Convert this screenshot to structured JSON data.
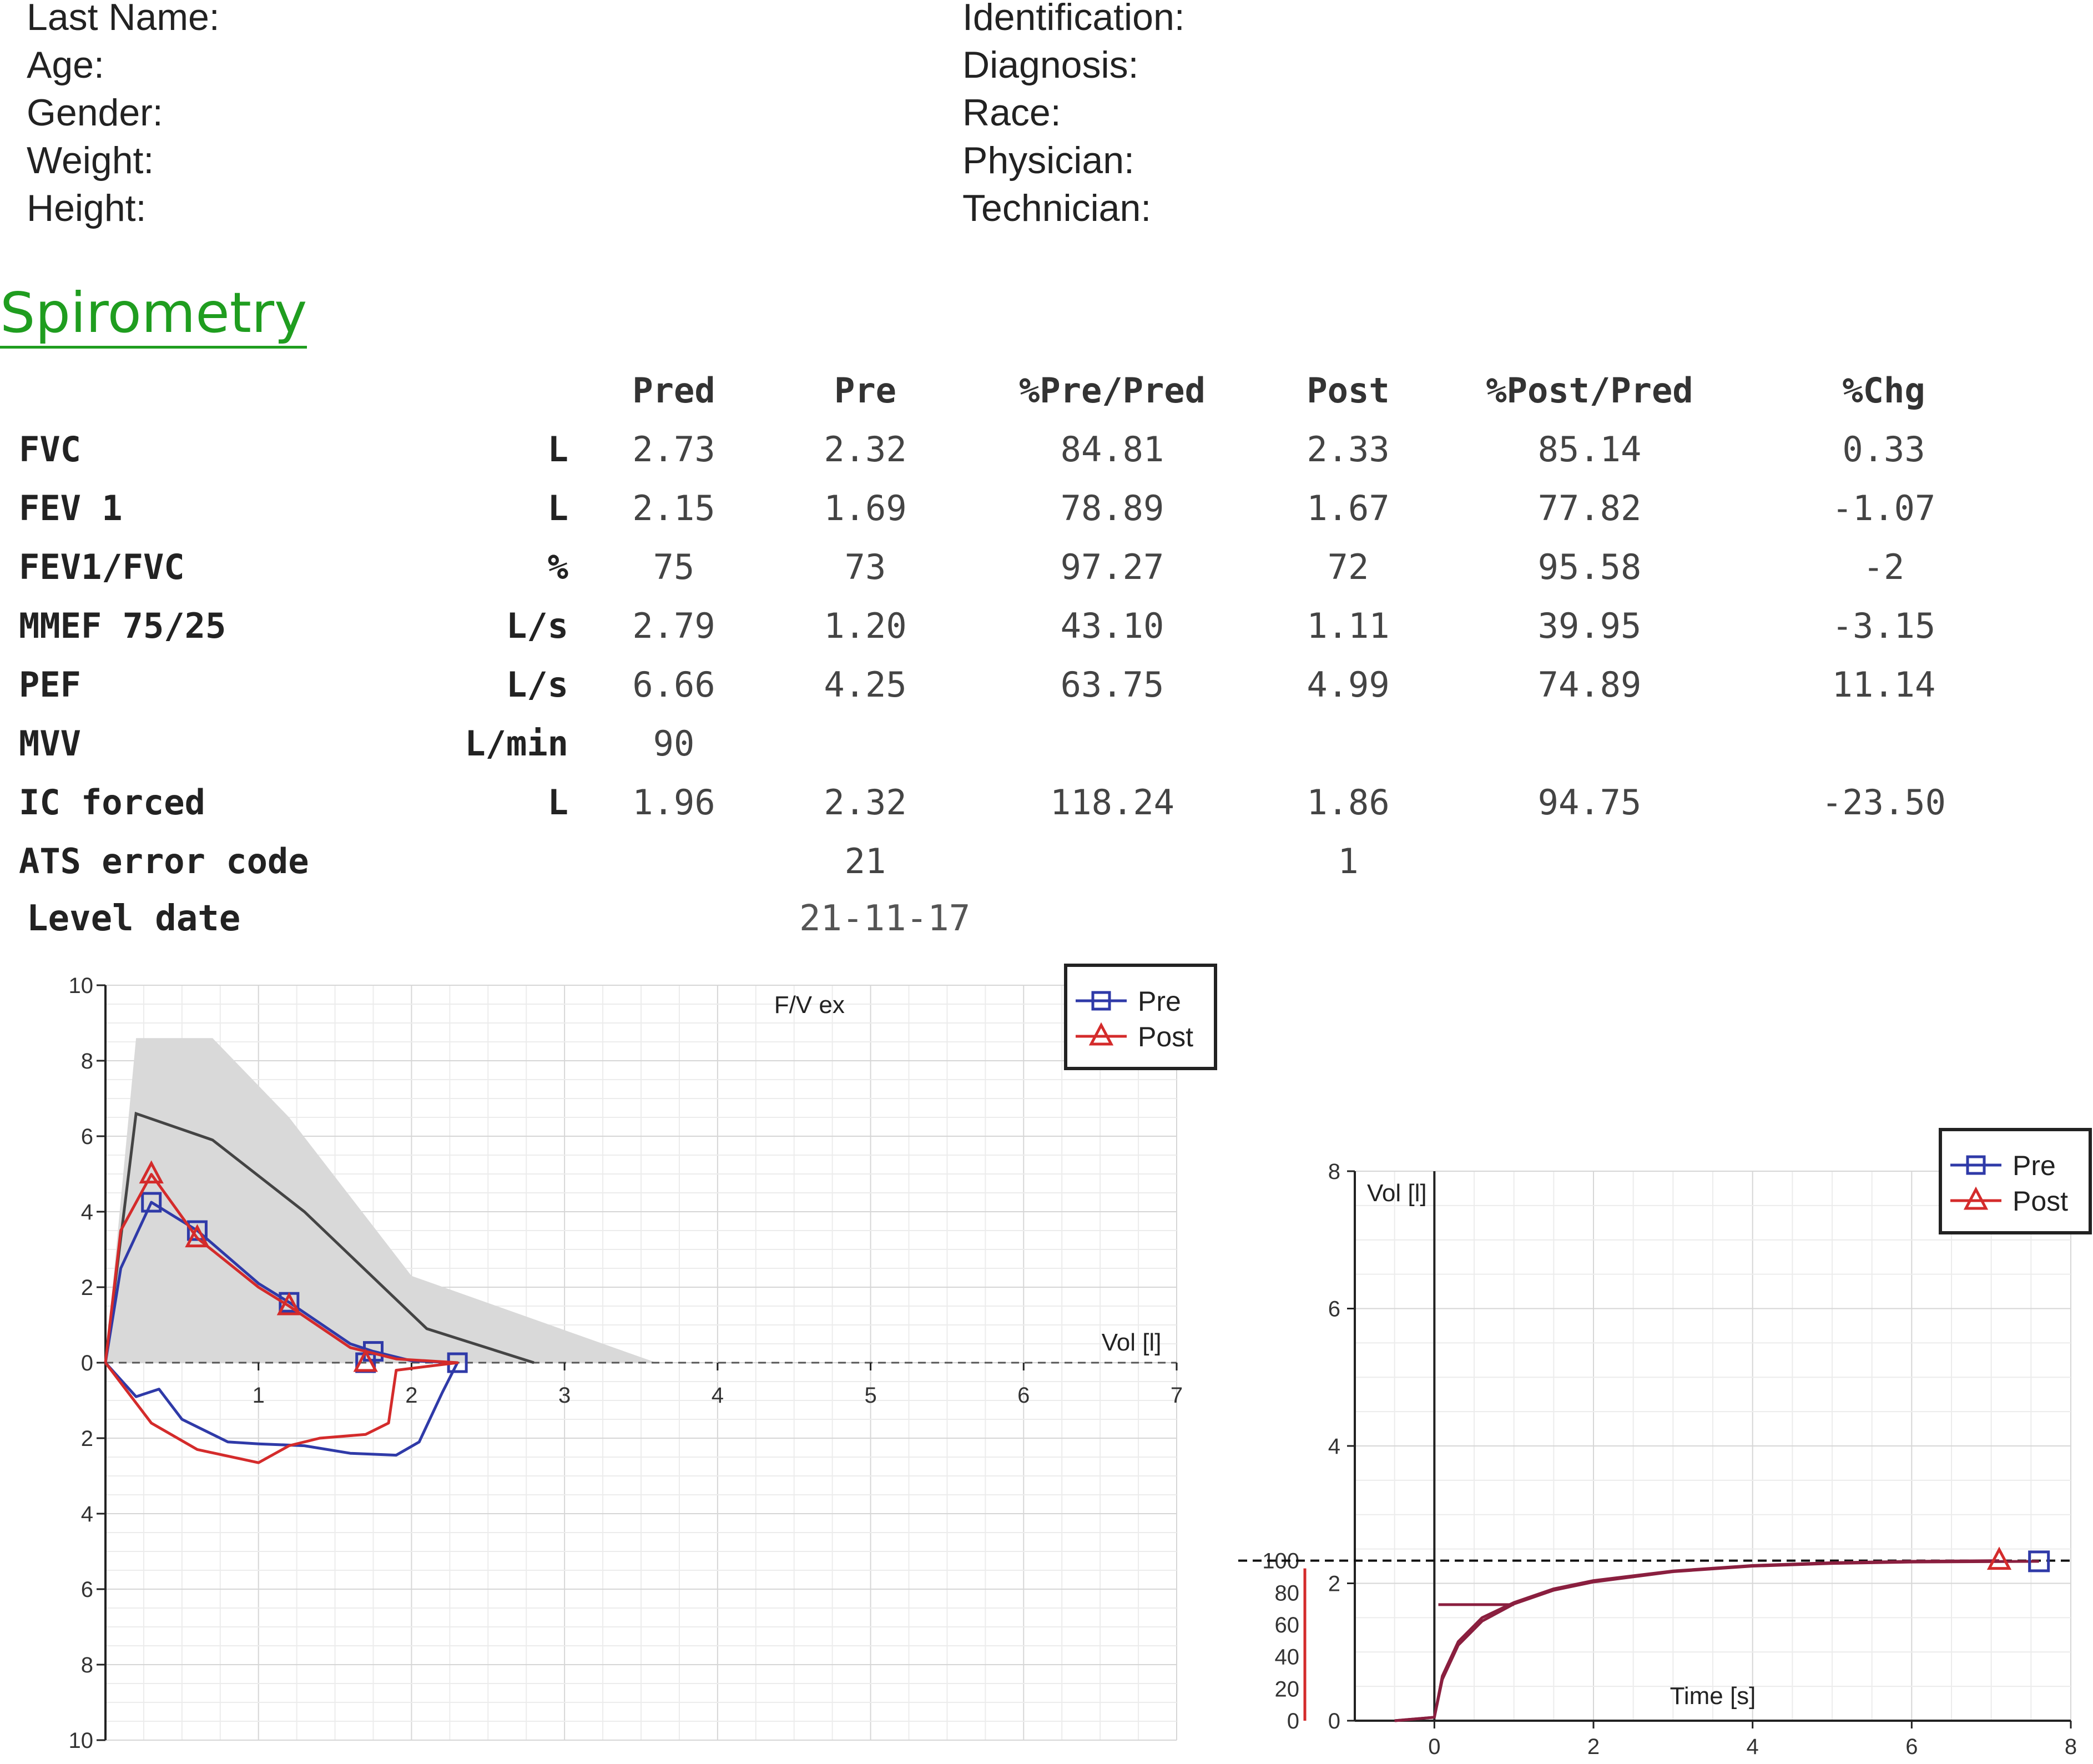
{
  "patient": {
    "left_fields": [
      "Last Name:",
      "Age:",
      "Gender:",
      "Weight:",
      "Height:"
    ],
    "right_fields": [
      "Identification:",
      "Diagnosis:",
      "Race:",
      "Physician:",
      "Technician:"
    ]
  },
  "section_title": "Spirometry",
  "table": {
    "headers": {
      "pred": "Pred",
      "pre": "Pre",
      "pct_pre_pred": "%Pre/Pred",
      "post": "Post",
      "pct_post_pred": "%Post/Pred",
      "chg": "%Chg"
    },
    "rows": [
      {
        "param": "FVC",
        "unit": "L",
        "pred": "2.73",
        "pre": "2.32",
        "pct_pre": "84.81",
        "post": "2.33",
        "pct_post": "85.14",
        "chg": "0.33"
      },
      {
        "param": "FEV 1",
        "unit": "L",
        "pred": "2.15",
        "pre": "1.69",
        "pct_pre": "78.89",
        "post": "1.67",
        "pct_post": "77.82",
        "chg": "-1.07"
      },
      {
        "param": "FEV1/FVC",
        "unit": "%",
        "pred": "75",
        "pre": "73",
        "pct_pre": "97.27",
        "post": "72",
        "pct_post": "95.58",
        "chg": "-2"
      },
      {
        "param": "MMEF 75/25",
        "unit": "L/s",
        "pred": "2.79",
        "pre": "1.20",
        "pct_pre": "43.10",
        "post": "1.11",
        "pct_post": "39.95",
        "chg": "-3.15"
      },
      {
        "param": "PEF",
        "unit": "L/s",
        "pred": "6.66",
        "pre": "4.25",
        "pct_pre": "63.75",
        "post": "4.99",
        "pct_post": "74.89",
        "chg": "11.14"
      },
      {
        "param": "MVV",
        "unit": "L/min",
        "pred": "90",
        "pre": "",
        "pct_pre": "",
        "post": "",
        "pct_post": "",
        "chg": ""
      },
      {
        "param": "IC forced",
        "unit": "L",
        "pred": "1.96",
        "pre": "2.32",
        "pct_pre": "118.24",
        "post": "1.86",
        "pct_post": "94.75",
        "chg": "-23.50"
      },
      {
        "param": "ATS error code",
        "unit": "",
        "pred": "",
        "pre": "21",
        "pct_pre": "",
        "post": "1",
        "pct_post": "",
        "chg": ""
      }
    ]
  },
  "level": {
    "label": "Level date",
    "value": "21-11-17"
  },
  "colors": {
    "pre": "#2f3aa8",
    "post": "#d42b2b",
    "predicted": "#444444",
    "band": "#d9d9d9",
    "title_green": "#1f9d1f"
  },
  "chart_data": [
    {
      "type": "line",
      "title": "F/V ex",
      "xlabel": "Vol [l]",
      "ylabel": "",
      "xlim": [
        0,
        7
      ],
      "ylim": [
        -10,
        10
      ],
      "x_ticks": [
        "1",
        "2",
        "3",
        "4",
        "5",
        "6",
        "7"
      ],
      "y_ticks": [
        "10",
        "8",
        "6",
        "4",
        "2",
        "0",
        "2",
        "4",
        "6",
        "8",
        "10"
      ],
      "legend": [
        "Pre",
        "Post"
      ],
      "legend_position": "top-right",
      "grid": true,
      "predicted_band": {
        "upper": [
          [
            0,
            0
          ],
          [
            0.2,
            8.6
          ],
          [
            0.7,
            8.6
          ],
          [
            1.2,
            6.5
          ],
          [
            2.0,
            2.3
          ],
          [
            3.6,
            0
          ],
          [
            7.0,
            0
          ]
        ],
        "lower": [
          [
            7.0,
            0
          ],
          [
            0,
            0
          ]
        ]
      },
      "predicted_line": {
        "x": [
          0,
          0.2,
          0.7,
          1.3,
          2.1,
          2.8
        ],
        "y": [
          0,
          6.6,
          5.9,
          4.0,
          0.9,
          0
        ]
      },
      "series": [
        {
          "name": "Pre",
          "x": [
            0,
            0.1,
            0.3,
            0.6,
            1.0,
            1.2,
            1.6,
            1.75,
            2.0,
            2.3,
            2.2,
            2.05,
            1.9,
            1.6,
            1.3,
            1.0,
            0.8,
            0.5,
            0.35,
            0.2,
            0
          ],
          "y": [
            0,
            2.5,
            4.25,
            3.5,
            2.1,
            1.6,
            0.5,
            0.3,
            0.05,
            0,
            -0.8,
            -2.1,
            -2.45,
            -2.4,
            -2.2,
            -2.15,
            -2.1,
            -1.5,
            -0.7,
            -0.9,
            0
          ],
          "markers": [
            [
              0.3,
              4.25
            ],
            [
              0.6,
              3.5
            ],
            [
              1.2,
              1.6
            ],
            [
              1.75,
              0.3
            ],
            [
              2.3,
              0
            ],
            [
              1.7,
              0
            ]
          ]
        },
        {
          "name": "Post",
          "x": [
            0,
            0.1,
            0.3,
            0.6,
            1.0,
            1.2,
            1.6,
            1.7,
            1.9,
            2.3,
            1.9,
            1.85,
            1.7,
            1.4,
            1.2,
            1.0,
            0.6,
            0.3,
            0
          ],
          "y": [
            0,
            3.5,
            4.99,
            3.3,
            2.0,
            1.5,
            0.4,
            0.3,
            0.1,
            0,
            -0.2,
            -1.6,
            -1.9,
            -2.0,
            -2.2,
            -2.65,
            -2.3,
            -1.6,
            0
          ],
          "markers": [
            [
              0.3,
              4.99
            ],
            [
              0.6,
              3.3
            ],
            [
              1.2,
              1.5
            ],
            [
              1.7,
              0
            ]
          ]
        }
      ]
    },
    {
      "type": "line",
      "title": "",
      "xlabel": "Time [s]",
      "ylabel": "Vol [l]",
      "xlim": [
        -1,
        8
      ],
      "ylim": [
        0,
        8
      ],
      "x_ticks": [
        "0",
        "2",
        "4",
        "6",
        "8"
      ],
      "y_ticks": [
        "0",
        "2",
        "4",
        "6",
        "8"
      ],
      "secondary_y_ticks": [
        "0",
        "20",
        "40",
        "60",
        "80",
        "100"
      ],
      "legend": [
        "Pre",
        "Post"
      ],
      "legend_position": "top-right",
      "grid": true,
      "reference_line_y": 2.33,
      "series": [
        {
          "name": "Pre",
          "x": [
            -0.5,
            0,
            0.1,
            0.3,
            0.6,
            1.0,
            1.5,
            2.0,
            3.0,
            4.0,
            5.0,
            6.0,
            7.6
          ],
          "y": [
            0,
            0.05,
            0.6,
            1.1,
            1.45,
            1.7,
            1.9,
            2.02,
            2.17,
            2.25,
            2.29,
            2.31,
            2.32
          ],
          "markers": [
            [
              7.6,
              2.32
            ]
          ]
        },
        {
          "name": "Post",
          "x": [
            -0.5,
            0,
            0.1,
            0.3,
            0.6,
            1.0,
            1.5,
            2.0,
            3.0,
            4.0,
            5.0,
            6.0,
            7.1
          ],
          "y": [
            0,
            0.05,
            0.65,
            1.15,
            1.5,
            1.72,
            1.92,
            2.04,
            2.18,
            2.26,
            2.3,
            2.32,
            2.33
          ],
          "markers": [
            [
              7.1,
              2.33
            ]
          ]
        }
      ]
    }
  ]
}
